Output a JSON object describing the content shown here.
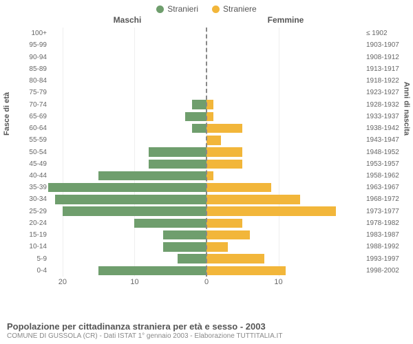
{
  "legend": [
    {
      "label": "Stranieri",
      "color": "#6f9e6d"
    },
    {
      "label": "Straniere",
      "color": "#f2b63a"
    }
  ],
  "column_headers": {
    "left": "Maschi",
    "right": "Femmine"
  },
  "axis_titles": {
    "left": "Fasce di età",
    "right": "Anni di nascita"
  },
  "title": "Popolazione per cittadinanza straniera per età e sesso - 2003",
  "subtitle": "COMUNE DI GUSSOLA (CR) - Dati ISTAT 1° gennaio 2003 - Elaborazione TUTTITALIA.IT",
  "chart": {
    "type": "population-pyramid",
    "max_value": 22,
    "background_color": "#ffffff",
    "grid_color": "#eeeeee",
    "x_ticks_left": [
      20,
      10,
      0
    ],
    "x_ticks_right": [
      0,
      10
    ],
    "male_color": "#6f9e6d",
    "female_color": "#f2b63a",
    "bar_height_ratio": 0.78,
    "rows": [
      {
        "age": "0-4",
        "birth": "1998-2002",
        "m": 15,
        "f": 11
      },
      {
        "age": "5-9",
        "birth": "1993-1997",
        "m": 4,
        "f": 8
      },
      {
        "age": "10-14",
        "birth": "1988-1992",
        "m": 6,
        "f": 3
      },
      {
        "age": "15-19",
        "birth": "1983-1987",
        "m": 6,
        "f": 6
      },
      {
        "age": "20-24",
        "birth": "1978-1982",
        "m": 10,
        "f": 5
      },
      {
        "age": "25-29",
        "birth": "1973-1977",
        "m": 20,
        "f": 18
      },
      {
        "age": "30-34",
        "birth": "1968-1972",
        "m": 21,
        "f": 13
      },
      {
        "age": "35-39",
        "birth": "1963-1967",
        "m": 22,
        "f": 9
      },
      {
        "age": "40-44",
        "birth": "1958-1962",
        "m": 15,
        "f": 1
      },
      {
        "age": "45-49",
        "birth": "1953-1957",
        "m": 8,
        "f": 5
      },
      {
        "age": "50-54",
        "birth": "1948-1952",
        "m": 8,
        "f": 5
      },
      {
        "age": "55-59",
        "birth": "1943-1947",
        "m": 0,
        "f": 2
      },
      {
        "age": "60-64",
        "birth": "1938-1942",
        "m": 2,
        "f": 5
      },
      {
        "age": "65-69",
        "birth": "1933-1937",
        "m": 3,
        "f": 1
      },
      {
        "age": "70-74",
        "birth": "1928-1932",
        "m": 2,
        "f": 1
      },
      {
        "age": "75-79",
        "birth": "1923-1927",
        "m": 0,
        "f": 0
      },
      {
        "age": "80-84",
        "birth": "1918-1922",
        "m": 0,
        "f": 0
      },
      {
        "age": "85-89",
        "birth": "1913-1917",
        "m": 0,
        "f": 0
      },
      {
        "age": "90-94",
        "birth": "1908-1912",
        "m": 0,
        "f": 0
      },
      {
        "age": "95-99",
        "birth": "1903-1907",
        "m": 0,
        "f": 0
      },
      {
        "age": "100+",
        "birth": "≤ 1902",
        "m": 0,
        "f": 0
      }
    ]
  }
}
